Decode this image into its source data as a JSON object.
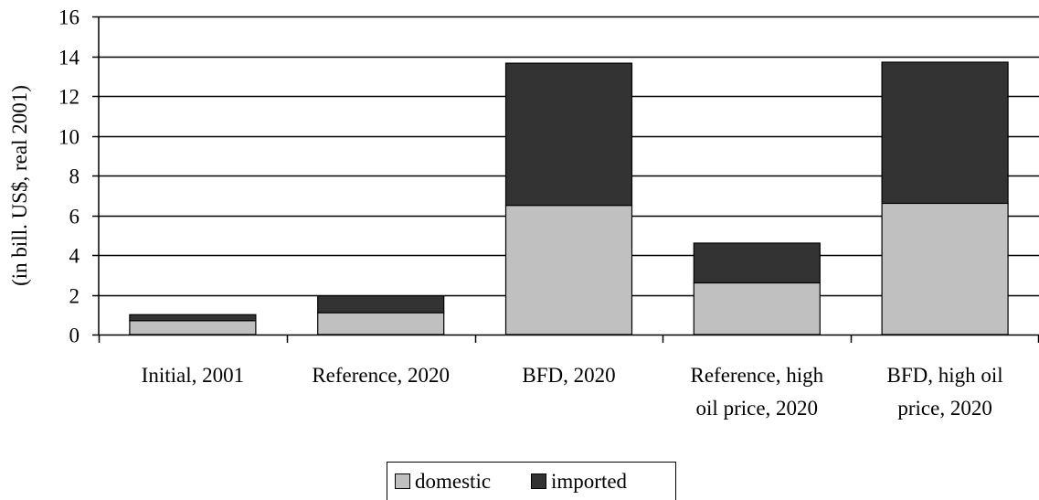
{
  "chart_data": {
    "type": "bar",
    "stacked": true,
    "title": "",
    "xlabel": "",
    "ylabel": "(in bill. US$, real 2001)",
    "ylim": [
      0,
      16
    ],
    "yticks": [
      0,
      2,
      4,
      6,
      8,
      10,
      12,
      14,
      16
    ],
    "grid": true,
    "legend_position": "bottom",
    "categories": [
      [
        "Initial, 2001"
      ],
      [
        "Reference, 2020"
      ],
      [
        "BFD, 2020"
      ],
      [
        "Reference, high",
        "oil price, 2020"
      ],
      [
        "BFD, high oil",
        "price, 2020"
      ]
    ],
    "series": [
      {
        "name": "domestic",
        "color": "#c0c0c0",
        "values": [
          0.7,
          1.1,
          6.5,
          2.6,
          6.6
        ]
      },
      {
        "name": "imported",
        "color": "#333333",
        "values": [
          0.3,
          0.85,
          7.15,
          2.0,
          7.1
        ]
      }
    ]
  }
}
